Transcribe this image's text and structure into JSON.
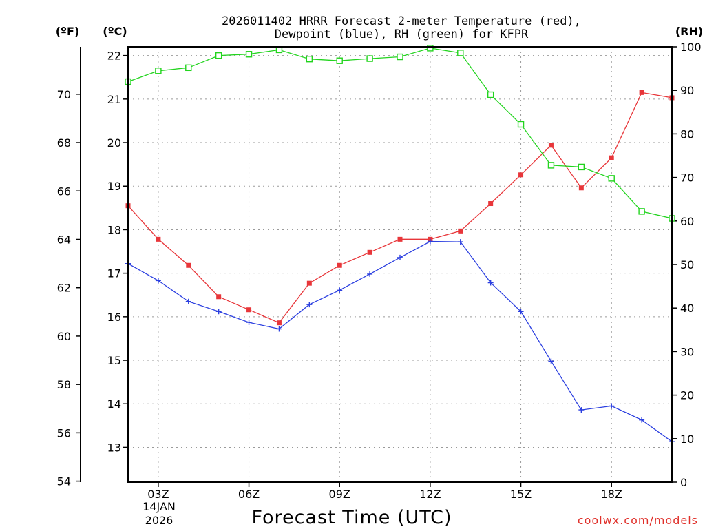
{
  "chart_data": {
    "type": "line",
    "title_line1": "2026011402 HRRR Forecast 2-meter Temperature (red),",
    "title_line2": "Dewpoint (blue), RH (green) for KFPR",
    "xlabel": "Forecast Time (UTC)",
    "credit": "coolwx.com/models",
    "units": {
      "f": "(ºF)",
      "c": "(ºC)",
      "rh": "(RH)"
    },
    "x_range": [
      2,
      20
    ],
    "x_ticks": [
      {
        "x": 3,
        "label": "03Z"
      },
      {
        "x": 6,
        "label": "06Z"
      },
      {
        "x": 9,
        "label": "09Z"
      },
      {
        "x": 12,
        "label": "12Z"
      },
      {
        "x": 15,
        "label": "15Z"
      },
      {
        "x": 18,
        "label": "18Z"
      }
    ],
    "date_label": [
      "14JAN",
      "2026"
    ],
    "y_celsius_range": [
      12.2,
      22.2
    ],
    "y_celsius_ticks": [
      13,
      14,
      15,
      16,
      17,
      18,
      19,
      20,
      21,
      22
    ],
    "y_fahrenheit_ticks": [
      54,
      56,
      58,
      60,
      62,
      64,
      66,
      68,
      70
    ],
    "y_rh_range": [
      0,
      100
    ],
    "y_rh_ticks": [
      0,
      10,
      20,
      30,
      40,
      50,
      60,
      70,
      80,
      90,
      100
    ],
    "x": [
      2,
      3,
      4,
      5,
      6,
      7,
      8,
      9,
      10,
      11,
      12,
      13,
      14,
      15,
      16,
      17,
      18,
      19,
      20
    ],
    "series": [
      {
        "name": "2-meter Temperature",
        "unit": "C",
        "color": "#e8363a",
        "marker": "filled-square",
        "values": [
          18.55,
          17.78,
          17.18,
          16.46,
          16.16,
          15.86,
          16.77,
          17.18,
          17.48,
          17.78,
          17.78,
          17.97,
          18.6,
          19.26,
          19.94,
          18.96,
          19.65,
          21.15,
          21.03
        ]
      },
      {
        "name": "Dewpoint",
        "unit": "C",
        "color": "#2b3fe0",
        "marker": "plus",
        "values": [
          17.22,
          16.83,
          16.35,
          16.12,
          15.87,
          15.72,
          16.28,
          16.61,
          16.98,
          17.36,
          17.73,
          17.72,
          16.78,
          16.12,
          14.98,
          13.86,
          13.95,
          13.63,
          13.13
        ]
      },
      {
        "name": "RH",
        "unit": "%",
        "color": "#22d41e",
        "marker": "open-square",
        "values": [
          92,
          94.5,
          95.2,
          98,
          98.3,
          99.3,
          97.2,
          96.8,
          97.3,
          97.7,
          99.7,
          98.6,
          89,
          82.2,
          72.8,
          72.4,
          69.8,
          62.2,
          60.6
        ]
      }
    ]
  }
}
